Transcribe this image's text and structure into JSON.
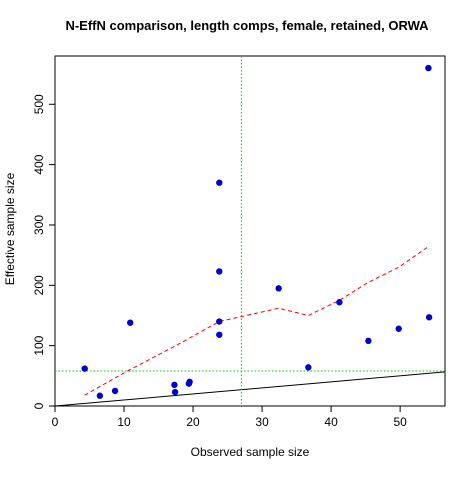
{
  "chart_data": {
    "type": "scatter",
    "title": "N-EffN comparison, length comps, female, retained, ORWA",
    "xlabel": "Observed sample size",
    "ylabel": "Effective sample size",
    "xlim": [
      0,
      56.5
    ],
    "ylim": [
      0,
      580
    ],
    "x_ticks": [
      0,
      10,
      20,
      30,
      40,
      50
    ],
    "y_ticks": [
      0,
      100,
      200,
      300,
      400,
      500
    ],
    "grid": false,
    "legend": "none",
    "points": {
      "color": "#0000cc",
      "x": [
        4.3,
        6.5,
        8.7,
        10.9,
        17.3,
        17.4,
        19.4,
        19.5,
        23.8,
        23.8,
        23.8,
        23.8,
        32.4,
        36.7,
        41.2,
        45.4,
        49.8,
        54.1,
        54.2
      ],
      "y": [
        62,
        17,
        25,
        138,
        35,
        23,
        37,
        40,
        370,
        223,
        140,
        118,
        195,
        64,
        172,
        108,
        128,
        560,
        147
      ]
    },
    "trend_line": {
      "color": "#ff0000",
      "style": "dashed",
      "x": [
        4.3,
        10.5,
        17.5,
        23.8,
        32.4,
        36.7,
        41.2,
        45.4,
        49.8,
        54.2
      ],
      "y": [
        18,
        58,
        100,
        140,
        162,
        150,
        175,
        205,
        230,
        265
      ]
    },
    "identity_line": {
      "color": "#000000",
      "x": [
        0,
        56.5
      ],
      "y": [
        0,
        56.5
      ]
    },
    "reference_lines": {
      "color": "#00cc00",
      "style": "dotted",
      "vertical_x": 27,
      "horizontal_y": 58
    }
  }
}
